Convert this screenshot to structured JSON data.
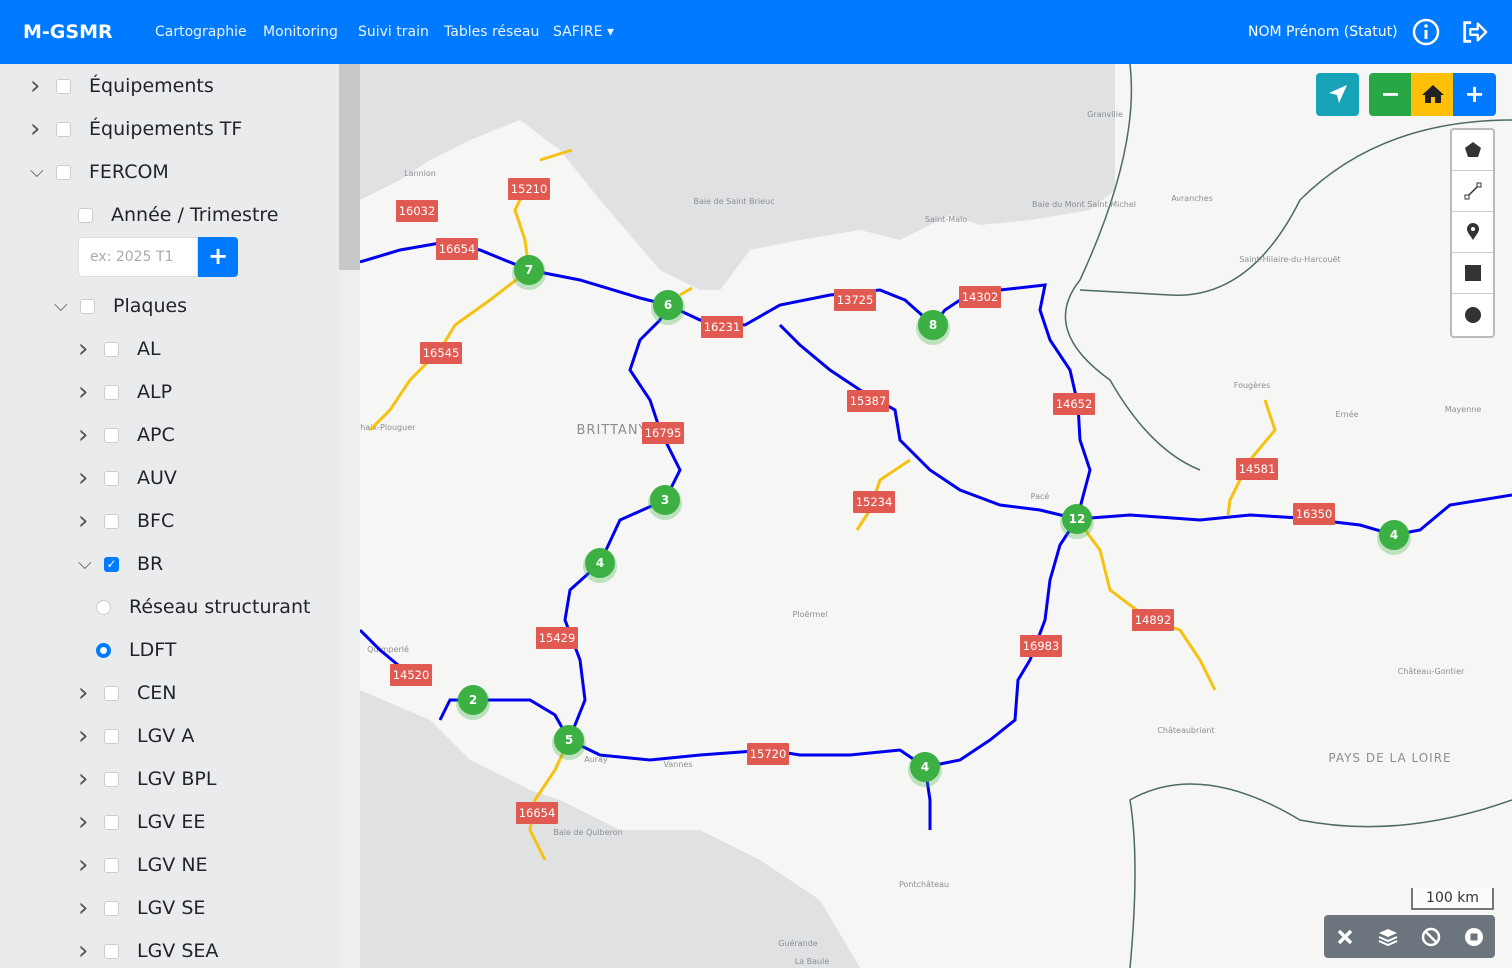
{
  "navbar": {
    "brand": "M-GSMR",
    "links": [
      "Cartographie",
      "Monitoring",
      "Suivi train",
      "Tables réseau",
      "SAFIRE"
    ],
    "user": "NOM Prénom (Statut)",
    "icons": [
      "info-icon",
      "logout-icon"
    ]
  },
  "sidebar": {
    "items": [
      {
        "label": "Équipements",
        "level": 0,
        "expand": "collapsed",
        "control": "checkbox",
        "checked": false
      },
      {
        "label": "Équipements TF",
        "level": 0,
        "expand": "collapsed",
        "control": "checkbox",
        "checked": false
      },
      {
        "label": "FERCOM",
        "level": 0,
        "expand": "expanded",
        "control": "checkbox",
        "checked": false
      },
      {
        "label": "Année / Trimestre",
        "level": 1,
        "expand": "none",
        "control": "checkbox",
        "checked": false
      },
      {
        "label": "Plaques",
        "level": 1,
        "expand": "expanded",
        "control": "checkbox",
        "checked": false
      },
      {
        "label": "AL",
        "level": 2,
        "expand": "collapsed",
        "control": "checkbox",
        "checked": false
      },
      {
        "label": "ALP",
        "level": 2,
        "expand": "collapsed",
        "control": "checkbox",
        "checked": false
      },
      {
        "label": "APC",
        "level": 2,
        "expand": "collapsed",
        "control": "checkbox",
        "checked": false
      },
      {
        "label": "AUV",
        "level": 2,
        "expand": "collapsed",
        "control": "checkbox",
        "checked": false
      },
      {
        "label": "BFC",
        "level": 2,
        "expand": "collapsed",
        "control": "checkbox",
        "checked": false
      },
      {
        "label": "BR",
        "level": 2,
        "expand": "expanded",
        "control": "checkbox",
        "checked": true
      },
      {
        "label": "Réseau structurant",
        "level": 3,
        "expand": "none",
        "control": "radio",
        "checked": false
      },
      {
        "label": "LDFT",
        "level": 3,
        "expand": "none",
        "control": "radio",
        "checked": true
      },
      {
        "label": "CEN",
        "level": 2,
        "expand": "collapsed",
        "control": "checkbox",
        "checked": false
      },
      {
        "label": "LGV A",
        "level": 2,
        "expand": "collapsed",
        "control": "checkbox",
        "checked": false
      },
      {
        "label": "LGV BPL",
        "level": 2,
        "expand": "collapsed",
        "control": "checkbox",
        "checked": false
      },
      {
        "label": "LGV EE",
        "level": 2,
        "expand": "collapsed",
        "control": "checkbox",
        "checked": false
      },
      {
        "label": "LGV NE",
        "level": 2,
        "expand": "collapsed",
        "control": "checkbox",
        "checked": false
      },
      {
        "label": "LGV SE",
        "level": 2,
        "expand": "collapsed",
        "control": "checkbox",
        "checked": false
      },
      {
        "label": "LGV SEA",
        "level": 2,
        "expand": "collapsed",
        "control": "checkbox",
        "checked": false
      }
    ],
    "year_input": {
      "value": "",
      "placeholder": "ex: 2025 T1",
      "add_label": "+"
    }
  },
  "map": {
    "controls": {
      "locate": "location-arrow-icon",
      "zoom_out": "−",
      "home": "home-icon",
      "zoom_in": "+"
    },
    "draw_tools": [
      "polygon-icon",
      "polyline-icon",
      "marker-icon",
      "rectangle-icon",
      "circle-icon"
    ],
    "scale": "100 km",
    "bottom_tools": [
      "close-icon",
      "layers-icon",
      "ban-icon",
      "stop-icon"
    ],
    "place_labels": [
      "BRITTANY",
      "PAYS DE LA LOIRE",
      "Lannion",
      "Granville",
      "Avranches",
      "Saint-Malo",
      "Baie de Saint Brieuc",
      "Baie du Mont Saint Michel",
      "Saint-Hilaire-du-Harcouët",
      "Fougères",
      "Ernée",
      "Mayenne",
      "Pacé",
      "Ploërmel",
      "Quimperlé",
      "Auray",
      "Vannes",
      "Châteaubriant",
      "Château-Gontier",
      "Pontchâteau",
      "Guérande",
      "La Baule",
      "Baie de Quiberon",
      "Carhaix-Plouguer"
    ],
    "segment_labels": [
      "15210",
      "16032",
      "16654",
      "16545",
      "16231",
      "13725",
      "14302",
      "15387",
      "14652",
      "16795",
      "15234",
      "14581",
      "16350",
      "14892",
      "16983",
      "15429",
      "14520",
      "15720",
      "16654"
    ],
    "clusters": [
      "7",
      "6",
      "8",
      "3",
      "4",
      "12",
      "4",
      "2",
      "5",
      "4"
    ],
    "colors": {
      "route_blue": "#0000ee",
      "route_yellow": "#f5c211",
      "label_red": "#e05a52",
      "cluster_green": "#3cb043",
      "navbar": "#007bff"
    }
  }
}
